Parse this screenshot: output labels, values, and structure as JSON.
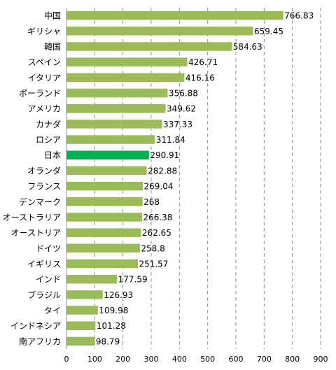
{
  "chart_data": {
    "type": "bar",
    "orientation": "horizontal",
    "categories": [
      "中国",
      "ギリシャ",
      "韓国",
      "スペイン",
      "イタリア",
      "ポーランド",
      "アメリカ",
      "カナダ",
      "ロシア",
      "日本",
      "オランダ",
      "フランス",
      "デンマーク",
      "オーストラリア",
      "オーストリア",
      "ドイツ",
      "イギリス",
      "インド",
      "ブラジル",
      "タイ",
      "インドネシア",
      "南アフリカ"
    ],
    "values": [
      766.83,
      659.45,
      584.63,
      426.71,
      416.16,
      356.88,
      349.62,
      337.33,
      311.84,
      290.91,
      282.88,
      269.04,
      268,
      266.38,
      262.65,
      258.8,
      251.57,
      177.59,
      126.93,
      109.98,
      101.28,
      98.79
    ],
    "value_labels": [
      "766.83",
      "659.45",
      "584.63",
      "426.71",
      "416.16",
      "356.88",
      "349.62",
      "337.33",
      "311.84",
      "290.91",
      "282.88",
      "269.04",
      "268",
      "266.38",
      "262.65",
      "258.8",
      "251.57",
      "177.59",
      "126.93",
      "109.98",
      "101.28",
      "98.79"
    ],
    "highlight_category": "日本",
    "xlim": [
      0,
      900
    ],
    "xticks": [
      0,
      100,
      200,
      300,
      400,
      500,
      600,
      700,
      800,
      900
    ],
    "xtick_labels": [
      "0",
      "100",
      "200",
      "300",
      "400",
      "500",
      "600",
      "700",
      "800",
      "900"
    ],
    "grid": "vertical dashed",
    "legend": "none",
    "colors": {
      "bar": "#9bbb59",
      "highlight": "#00b050"
    }
  }
}
